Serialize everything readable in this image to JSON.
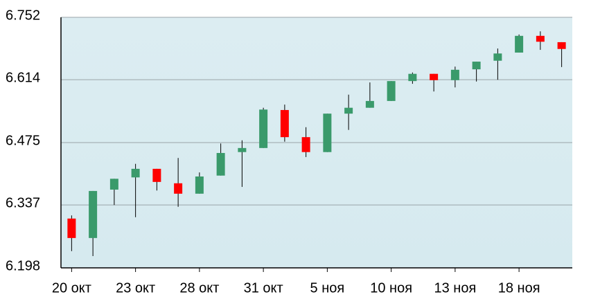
{
  "chart_data": {
    "type": "candlestick",
    "categories": [
      "20 окт",
      null,
      null,
      "23 окт",
      null,
      null,
      "28 окт",
      null,
      null,
      "31 окт",
      null,
      null,
      "5 ноя",
      null,
      null,
      "10 ноя",
      null,
      null,
      "13 ноя",
      null,
      null,
      "18 ноя",
      null,
      null
    ],
    "open": [
      6.307,
      6.264,
      6.371,
      6.398,
      6.417,
      6.385,
      6.362,
      6.402,
      6.454,
      6.463,
      6.547,
      6.487,
      6.454,
      6.539,
      6.552,
      6.567,
      6.611,
      6.627,
      6.613,
      6.637,
      6.656,
      6.674,
      6.711,
      6.697
    ],
    "high": [
      6.314,
      6.368,
      6.395,
      6.428,
      6.417,
      6.441,
      6.409,
      6.473,
      6.48,
      6.552,
      6.559,
      6.509,
      6.539,
      6.581,
      6.608,
      6.611,
      6.63,
      6.627,
      6.643,
      6.654,
      6.683,
      6.714,
      6.721,
      6.697
    ],
    "low": [
      6.235,
      6.224,
      6.337,
      6.31,
      6.369,
      6.333,
      6.362,
      6.402,
      6.377,
      6.463,
      6.477,
      6.443,
      6.454,
      6.503,
      6.552,
      6.567,
      6.605,
      6.588,
      6.597,
      6.61,
      6.614,
      6.674,
      6.68,
      6.642
    ],
    "close": [
      6.264,
      6.368,
      6.395,
      6.417,
      6.388,
      6.362,
      6.4,
      6.452,
      6.463,
      6.548,
      6.487,
      6.454,
      6.539,
      6.552,
      6.567,
      6.611,
      6.627,
      6.613,
      6.636,
      6.654,
      6.672,
      6.711,
      6.698,
      6.682
    ],
    "up_color": "#3a9a6b",
    "down_color": "#ff0000",
    "ylim": [
      6.198,
      6.752
    ],
    "yticks": [
      6.198,
      6.337,
      6.475,
      6.614,
      6.752
    ],
    "grid": true
  }
}
